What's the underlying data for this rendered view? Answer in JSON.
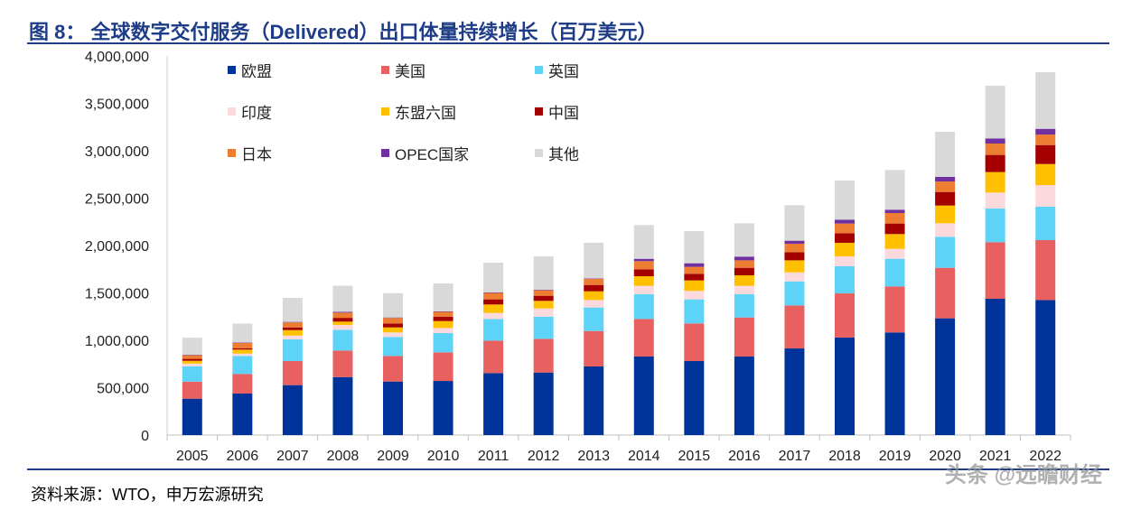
{
  "title": "图 8： 全球数字交付服务（Delivered）出口体量持续增长（百万美元）",
  "source": "资料来源：WTO，申万宏源研究",
  "watermark": "头条 @远瞻财经",
  "chart_data": {
    "type": "bar",
    "stacked": true,
    "title": "图 8： 全球数字交付服务（Delivered）出口体量持续增长（百万美元）",
    "xlabel": "",
    "ylabel": "",
    "ylim": [
      0,
      4000000
    ],
    "yticks": [
      0,
      500000,
      1000000,
      1500000,
      2000000,
      2500000,
      3000000,
      3500000,
      4000000
    ],
    "ytick_labels": [
      "0",
      "500,000",
      "1,000,000",
      "1,500,000",
      "2,000,000",
      "2,500,000",
      "3,000,000",
      "3,500,000",
      "4,000,000"
    ],
    "grid": false,
    "legend_position": "top-left",
    "categories": [
      "2005",
      "2006",
      "2007",
      "2008",
      "2009",
      "2010",
      "2011",
      "2012",
      "2013",
      "2014",
      "2015",
      "2016",
      "2017",
      "2018",
      "2019",
      "2020",
      "2021",
      "2022"
    ],
    "series": [
      {
        "name": "欧盟",
        "color": "#003399",
        "values": [
          384000,
          438000,
          527000,
          612000,
          565000,
          571000,
          654000,
          660000,
          724000,
          829000,
          781000,
          829000,
          914000,
          1029000,
          1083000,
          1232000,
          1438000,
          1425000
        ]
      },
      {
        "name": "美国",
        "color": "#E8605F",
        "values": [
          180000,
          207000,
          254000,
          280000,
          270000,
          302000,
          343000,
          356000,
          374000,
          396000,
          397000,
          412000,
          454000,
          466000,
          485000,
          533000,
          597000,
          632000
        ]
      },
      {
        "name": "英国",
        "color": "#5DD3F8",
        "values": [
          160000,
          190000,
          229000,
          219000,
          200000,
          203000,
          228000,
          234000,
          248000,
          261000,
          254000,
          245000,
          254000,
          286000,
          292000,
          327000,
          355000,
          353000
        ]
      },
      {
        "name": "印度",
        "color": "#FBD9DD",
        "values": [
          30000,
          25000,
          40000,
          51000,
          48000,
          54000,
          64000,
          86000,
          79000,
          89000,
          89000,
          89000,
          95000,
          105000,
          105000,
          143000,
          169000,
          228000
        ]
      },
      {
        "name": "东盟六国",
        "color": "#FFC000",
        "values": [
          30000,
          42000,
          58000,
          35000,
          53000,
          73000,
          89000,
          80000,
          92000,
          101000,
          111000,
          111000,
          127000,
          143000,
          156000,
          187000,
          216000,
          222000
        ]
      },
      {
        "name": "中国",
        "color": "#A50000",
        "values": [
          20000,
          15000,
          28000,
          40000,
          42000,
          47000,
          54000,
          54000,
          67000,
          73000,
          70000,
          79000,
          86000,
          101000,
          111000,
          143000,
          181000,
          200000
        ]
      },
      {
        "name": "日本",
        "color": "#ED7D31",
        "values": [
          38000,
          56000,
          53000,
          55000,
          58000,
          50000,
          68000,
          58000,
          65000,
          86000,
          73000,
          79000,
          89000,
          102000,
          111000,
          111000,
          120000,
          111000
        ]
      },
      {
        "name": "OPEC国家",
        "color": "#7030A0",
        "values": [
          5000,
          5000,
          5000,
          8000,
          5000,
          5000,
          5000,
          5000,
          5000,
          25000,
          38000,
          39000,
          32000,
          41000,
          35000,
          48000,
          54000,
          60000
        ]
      },
      {
        "name": "其他",
        "color": "#D9D9D9",
        "values": [
          180000,
          198000,
          254000,
          276000,
          256000,
          295000,
          314000,
          353000,
          375000,
          356000,
          339000,
          352000,
          374000,
          413000,
          419000,
          476000,
          556000,
          598000
        ]
      }
    ]
  }
}
